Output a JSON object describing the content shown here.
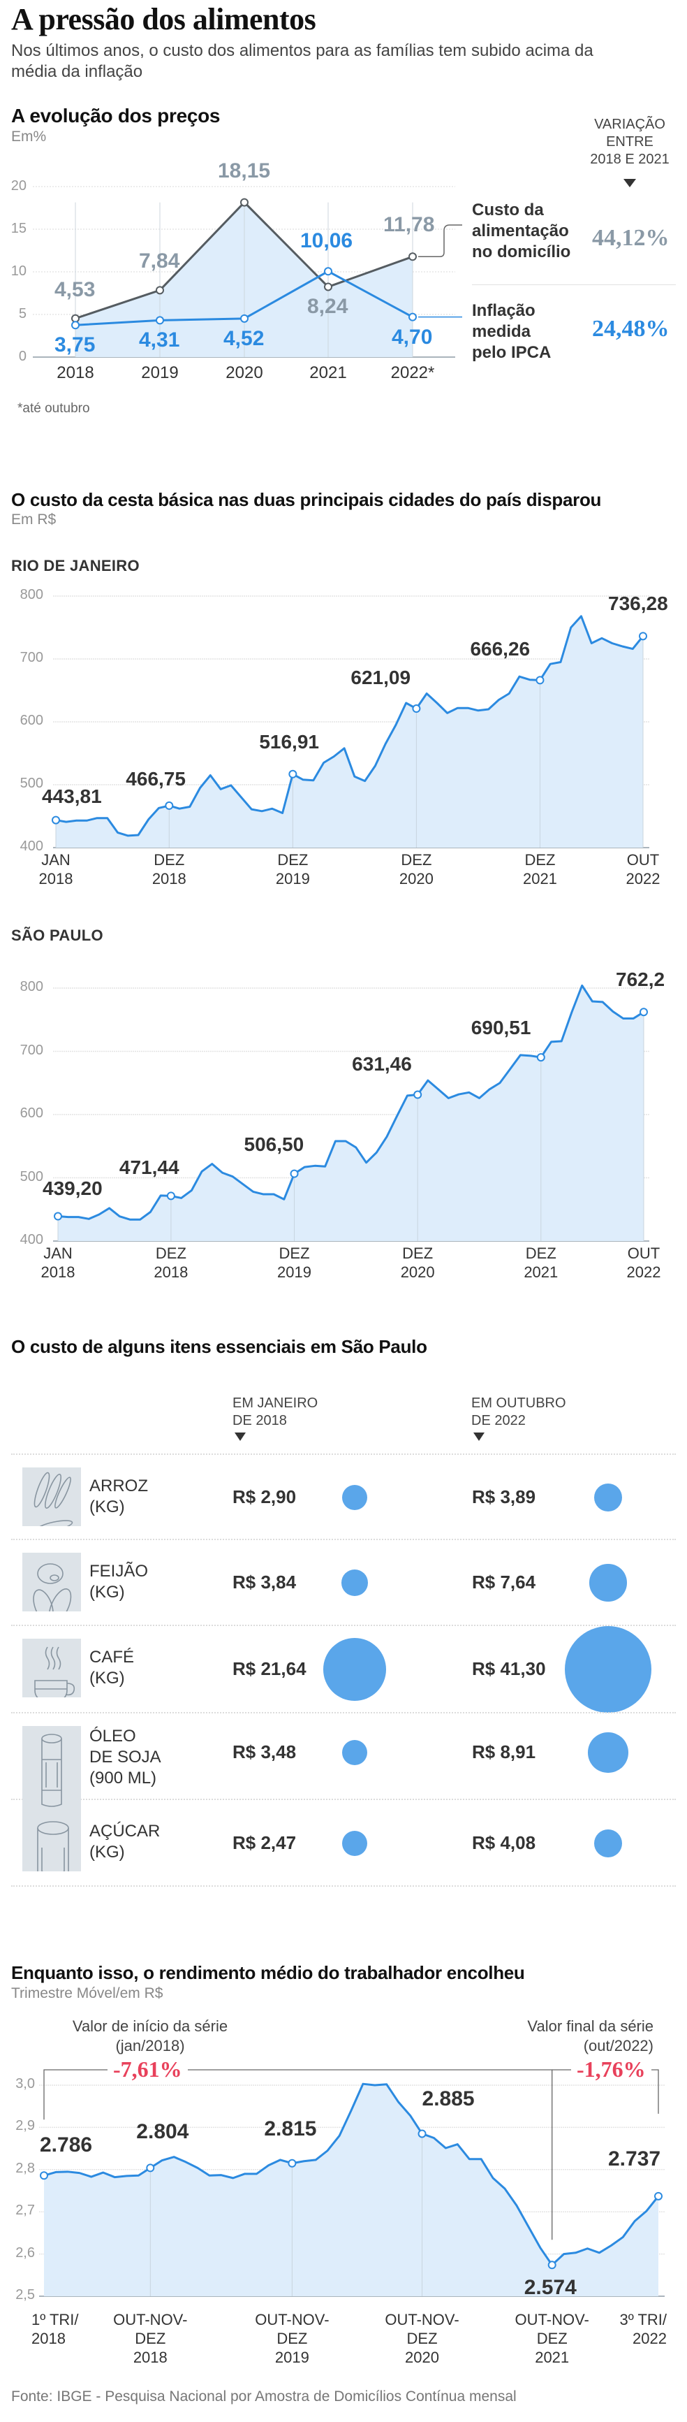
{
  "header": {
    "title": "A pressão dos alimentos",
    "subtitle": "Nos últimos anos, o custo dos alimentos para as famílias tem subido acima da média da inflação"
  },
  "section1": {
    "title": "A evolução dos preços",
    "unit": "Em%",
    "footnote": "*até outubro",
    "variation_header": [
      "VARIAÇÃO",
      "ENTRE",
      "2018 E 2021"
    ],
    "legend": [
      {
        "label_lines": [
          "Custo da",
          "alimentação",
          "no domicílio"
        ],
        "variation": "44,12%",
        "color": "#8a99a6"
      },
      {
        "label_lines": [
          "Inflação",
          "medida",
          "pelo IPCA"
        ],
        "variation": "24,48%",
        "color": "#2b8ae0"
      }
    ]
  },
  "section2": {
    "title": "O custo da cesta básica nas duas principais cidades do país disparou",
    "unit": "Em R$",
    "rio_label": "RIO DE JANEIRO",
    "sp_label": "SÃO PAULO"
  },
  "section3": {
    "title": "O custo de alguns itens essenciais em São Paulo",
    "col1_header": [
      "EM JANEIRO",
      "DE 2018"
    ],
    "col2_header": [
      "EM OUTUBRO",
      "DE 2022"
    ],
    "items": [
      {
        "icon": "rice-icon",
        "name_lines": [
          "ARROZ",
          "(KG)"
        ],
        "price_2018": "R$ 2,90",
        "price_2022": "R$ 3,89",
        "v2018": 2.9,
        "v2022": 3.89
      },
      {
        "icon": "beans-icon",
        "name_lines": [
          "FEIJÃO",
          "(KG)"
        ],
        "price_2018": "R$ 3,84",
        "price_2022": "R$ 7,64",
        "v2018": 3.84,
        "v2022": 7.64
      },
      {
        "icon": "coffee-cup-icon",
        "name_lines": [
          "CAFÉ",
          "(KG)"
        ],
        "price_2018": "R$ 21,64",
        "price_2022": "R$ 41,30",
        "v2018": 21.64,
        "v2022": 41.3
      },
      {
        "icon": "oil-bottle-icon",
        "name_lines": [
          "ÓLEO",
          "DE SOJA",
          "(900 ML)"
        ],
        "price_2018": "R$ 3,48",
        "price_2022": "R$ 8,91",
        "v2018": 3.48,
        "v2022": 8.91
      },
      {
        "icon": "sugar-jar-icon",
        "name_lines": [
          "AÇÚCAR",
          "(KG)"
        ],
        "price_2018": "R$ 2,47",
        "price_2022": "R$ 4,08",
        "v2018": 2.47,
        "v2022": 4.08
      }
    ]
  },
  "section4": {
    "title": "Enquanto isso, o rendimento médio do trabalhador encolheu",
    "unit": "Trimestre Móvel/em R$",
    "annotation_start": [
      "Valor de início da série",
      "(jan/2018)"
    ],
    "annotation_end": [
      "Valor final da série",
      "(out/2022)"
    ],
    "pct_start": "-7,61%",
    "pct_end": "-1,76%"
  },
  "footer": {
    "source": "Fonte: IBGE - Pesquisa Nacional por Amostra de Domicílios Contínua mensal"
  },
  "colors": {
    "accent_blue": "#2b8ae0",
    "area_fill": "#dcebfa",
    "food_line": "#555c61",
    "food_label": "#8a99a6",
    "bubble": "#5aa6ea",
    "negative": "#e8415b"
  },
  "chart_data": [
    {
      "type": "line",
      "title": "A evolução dos preços",
      "ylabel": "Em%",
      "categories": [
        "2018",
        "2019",
        "2020",
        "2021",
        "2022*"
      ],
      "series": [
        {
          "name": "Custo da alimentação no domicílio",
          "values": [
            4.53,
            7.84,
            18.15,
            8.24,
            11.78
          ],
          "labels": [
            "4,53",
            "7,84",
            "18,15",
            "8,24",
            "11,78"
          ]
        },
        {
          "name": "Inflação medida pelo IPCA",
          "values": [
            3.75,
            4.31,
            4.52,
            10.06,
            4.7
          ],
          "labels": [
            "3,75",
            "4,31",
            "4,52",
            "10,06",
            "4,70"
          ]
        }
      ],
      "yticks": [
        0,
        5,
        10,
        15,
        20
      ],
      "ylim": [
        0,
        20
      ],
      "annotations": [
        "*até outubro"
      ],
      "side_values": {
        "Custo da alimentação no domicílio": "44,12%",
        "Inflação medida pelo IPCA": "24,48%",
        "label": "VARIAÇÃO ENTRE 2018 E 2021"
      }
    },
    {
      "type": "area",
      "title": "RIO DE JANEIRO",
      "ylabel": "Em R$",
      "xticks": [
        [
          "JAN",
          "2018"
        ],
        [
          "DEZ",
          "2018"
        ],
        [
          "DEZ",
          "2019"
        ],
        [
          "DEZ",
          "2020"
        ],
        [
          "DEZ",
          "2021"
        ],
        [
          "OUT",
          "2022"
        ]
      ],
      "yticks": [
        400,
        500,
        600,
        700,
        800
      ],
      "ylim": [
        400,
        800
      ],
      "highlighted": [
        {
          "x": "JAN 2018",
          "value": 443.81,
          "label": "443,81"
        },
        {
          "x": "DEZ 2018",
          "value": 466.75,
          "label": "466,75"
        },
        {
          "x": "DEZ 2019",
          "value": 516.91,
          "label": "516,91"
        },
        {
          "x": "DEZ 2020",
          "value": 621.09,
          "label": "621,09"
        },
        {
          "x": "DEZ 2021",
          "value": 666.26,
          "label": "666,26"
        },
        {
          "x": "OUT 2022",
          "value": 736.28,
          "label": "736,28"
        }
      ],
      "values": [
        443.81,
        441,
        443,
        443,
        447,
        447,
        424,
        419,
        420,
        445,
        463,
        466.75,
        462,
        465,
        495,
        515,
        493,
        499,
        480,
        461,
        458,
        462,
        455,
        516.91,
        508,
        507,
        535,
        545,
        558,
        513,
        506,
        530,
        565,
        595,
        630,
        621.09,
        645,
        630,
        614,
        622,
        622,
        618,
        620,
        635,
        645,
        672,
        667,
        666.26,
        692,
        695,
        750,
        768,
        725,
        733,
        725,
        720,
        716,
        736.28
      ]
    },
    {
      "type": "area",
      "title": "SÃO PAULO",
      "ylabel": "Em R$",
      "xticks": [
        [
          "JAN",
          "2018"
        ],
        [
          "DEZ",
          "2018"
        ],
        [
          "DEZ",
          "2019"
        ],
        [
          "DEZ",
          "2020"
        ],
        [
          "DEZ",
          "2021"
        ],
        [
          "OUT",
          "2022"
        ]
      ],
      "yticks": [
        400,
        500,
        600,
        700,
        800
      ],
      "ylim": [
        400,
        800
      ],
      "highlighted": [
        {
          "x": "JAN 2018",
          "value": 439.2,
          "label": "439,20"
        },
        {
          "x": "DEZ 2018",
          "value": 471.44,
          "label": "471,44"
        },
        {
          "x": "DEZ 2019",
          "value": 506.5,
          "label": "506,50"
        },
        {
          "x": "DEZ 2020",
          "value": 631.46,
          "label": "631,46"
        },
        {
          "x": "DEZ 2021",
          "value": 690.51,
          "label": "690,51"
        },
        {
          "x": "OUT 2022",
          "value": 762.2,
          "label": "762,2"
        }
      ],
      "values": [
        439.2,
        438,
        438,
        435,
        442,
        452,
        439,
        434,
        434,
        446,
        472,
        471.44,
        468,
        480,
        510,
        522,
        508,
        502,
        490,
        478,
        474,
        474,
        466,
        506.5,
        517,
        519,
        518,
        558,
        558,
        548,
        524,
        540,
        565,
        598,
        630,
        631.46,
        654,
        640,
        626,
        632,
        635,
        626,
        640,
        650,
        672,
        694,
        693,
        690.51,
        715,
        716,
        762,
        804,
        779,
        778,
        763,
        752,
        752,
        762.2
      ]
    },
    {
      "type": "bubble",
      "title": "O custo de alguns itens essenciais em São Paulo",
      "categories": [
        "ARROZ (KG)",
        "FEIJÃO (KG)",
        "CAFÉ (KG)",
        "ÓLEO DE SOJA (900 ML)",
        "AÇÚCAR (KG)"
      ],
      "series": [
        {
          "name": "EM JANEIRO DE 2018",
          "values": [
            2.9,
            3.84,
            21.64,
            3.48,
            2.47
          ]
        },
        {
          "name": "EM OUTUBRO DE 2022",
          "values": [
            3.89,
            7.64,
            41.3,
            8.91,
            4.08
          ]
        }
      ]
    },
    {
      "type": "area",
      "title": "Enquanto isso, o rendimento médio do trabalhador encolheu",
      "ylabel": "Trimestre Móvel/em R$",
      "xticks": [
        [
          "1º TRI/",
          "2018"
        ],
        [
          "OUT-NOV-",
          "DEZ",
          "2018"
        ],
        [
          "OUT-NOV-",
          "DEZ",
          "2019"
        ],
        [
          "OUT-NOV-",
          "DEZ",
          "2020"
        ],
        [
          "OUT-NOV-",
          "DEZ",
          "2021"
        ],
        [
          "3º TRI/",
          "2022"
        ]
      ],
      "yticks": [
        2.5,
        2.6,
        2.7,
        2.8,
        2.9,
        3.0
      ],
      "yticklabels": [
        "2,5",
        "2,6",
        "2,7",
        "2,8",
        "2,9",
        "3,0"
      ],
      "ylim": [
        2.5,
        3.0
      ],
      "highlighted": [
        {
          "x": "1º TRI/2018",
          "value": 2.786,
          "label": "2.786"
        },
        {
          "x": "OUT-NOV-DEZ 2018",
          "value": 2.804,
          "label": "2.804"
        },
        {
          "x": "OUT-NOV-DEZ 2019",
          "value": 2.815,
          "label": "2.815"
        },
        {
          "x": "OUT-NOV-DEZ 2020",
          "value": 2.885,
          "label": "2.885"
        },
        {
          "x": "OUT-NOV-DEZ 2021",
          "value": 2.574,
          "label": "2.574"
        },
        {
          "x": "3º TRI/2022",
          "value": 2.737,
          "label": "2.737"
        }
      ],
      "annotations": [
        {
          "text": "Valor de início da série (jan/2018)",
          "value": "-7,61%"
        },
        {
          "text": "Valor final da série (out/2022)",
          "value": "-1,76%"
        }
      ],
      "values": [
        2.786,
        2.794,
        2.795,
        2.792,
        2.783,
        2.793,
        2.782,
        2.785,
        2.786,
        2.804,
        2.822,
        2.83,
        2.818,
        2.804,
        2.786,
        2.787,
        2.78,
        2.79,
        2.79,
        2.81,
        2.823,
        2.815,
        2.82,
        2.823,
        2.845,
        2.88,
        2.94,
        3.003,
        3.0,
        3.002,
        2.96,
        2.928,
        2.885,
        2.875,
        2.851,
        2.86,
        2.825,
        2.825,
        2.78,
        2.755,
        2.715,
        2.665,
        2.615,
        2.574,
        2.6,
        2.603,
        2.613,
        2.603,
        2.62,
        2.64,
        2.678,
        2.702,
        2.737
      ]
    }
  ]
}
